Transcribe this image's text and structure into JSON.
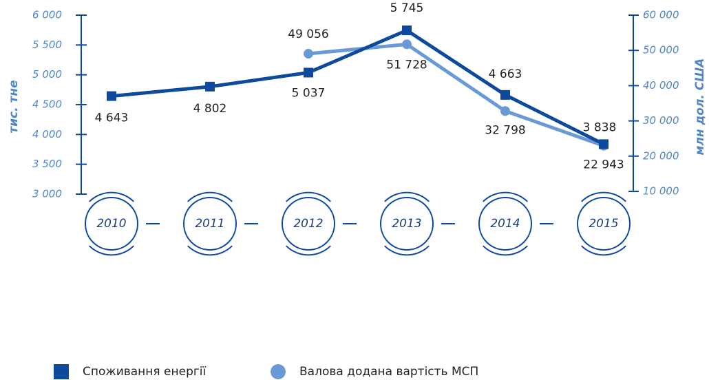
{
  "chart_data": {
    "type": "line",
    "categories": [
      "2010",
      "2011",
      "2012",
      "2013",
      "2014",
      "2015"
    ],
    "ylabel": "тис. тне",
    "y2label": "млн дол. США",
    "ylim": [
      3000,
      6000
    ],
    "yticks": [
      {
        "value": 3000,
        "label": "3 000"
      },
      {
        "value": 3500,
        "label": "3 500"
      },
      {
        "value": 4000,
        "label": "4 000"
      },
      {
        "value": 4500,
        "label": "4 500"
      },
      {
        "value": 5000,
        "label": "5 000"
      },
      {
        "value": 5500,
        "label": "5 500"
      },
      {
        "value": 6000,
        "label": "6 000"
      }
    ],
    "y2lim": [
      10000,
      60000
    ],
    "y2ticks": [
      {
        "value": 10000,
        "label": "10 000"
      },
      {
        "value": 20000,
        "label": "20 000"
      },
      {
        "value": 30000,
        "label": "30 000"
      },
      {
        "value": 40000,
        "label": "40 000"
      },
      {
        "value": 50000,
        "label": "50 000"
      },
      {
        "value": 60000,
        "label": "60 000"
      }
    ],
    "series": [
      {
        "name": "Споживання енергії",
        "color": "#0e4a9b",
        "marker": "square",
        "values": [
          4643,
          4802,
          5037,
          5745,
          4663,
          3838
        ],
        "value_labels": [
          "4 643",
          "4 802",
          "5 037",
          "5 745",
          "4 663",
          "3 838"
        ]
      },
      {
        "name": "Валова додана вартість МСП",
        "color": "#6a9ad6",
        "marker": "circle",
        "axis": "y2",
        "values": [
          null,
          null,
          49056,
          51728,
          32798,
          22943
        ],
        "value_labels": [
          null,
          null,
          "49 056",
          "51 728",
          "32 798",
          "22 943"
        ]
      }
    ]
  }
}
